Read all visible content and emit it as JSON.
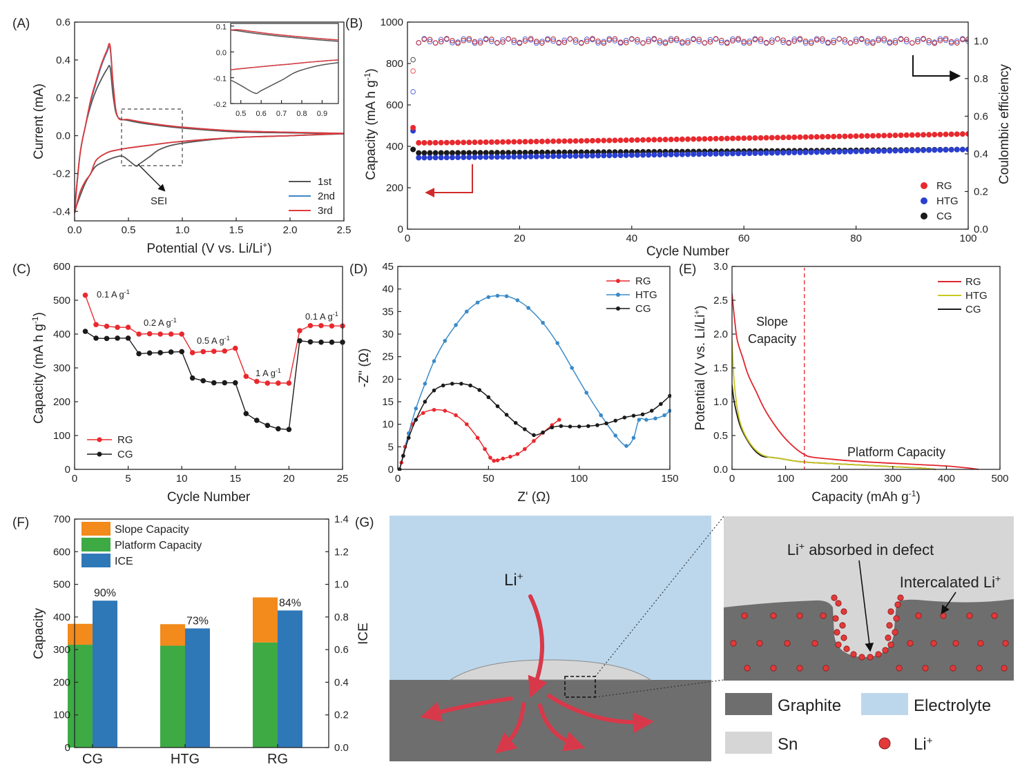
{
  "panels": {
    "A": {
      "letter": "(A)"
    },
    "B": {
      "letter": "(B)"
    },
    "C": {
      "letter": "(C)"
    },
    "D": {
      "letter": "(D)"
    },
    "E": {
      "letter": "(E)"
    },
    "F": {
      "letter": "(F)"
    },
    "G": {
      "letter": "(G)"
    }
  },
  "colors": {
    "RG": "#e8292e",
    "HTG": "#2a3fcf",
    "CG": "#1a1a1a",
    "cv1": "#555555",
    "cv2": "#3c86c4",
    "cv3": "#e03a3a",
    "eisRG": "#e8292e",
    "eisHTG": "#3a8ac8",
    "eisCG": "#1a1a1a",
    "galRG": "#e0252b",
    "galHTG": "#c8c820",
    "galCG": "#1a1a1a",
    "slope": "#f28a1c",
    "platform": "#3daa44",
    "ice": "#2f78b8",
    "graphite": "#6e6e6e",
    "electrolyte": "#bcd7ec",
    "sn": "#d6d6d6",
    "li": "#e23a3a"
  },
  "chart_data": [
    {
      "id": "A",
      "type": "line",
      "xlabel": "Potential (V vs. Li/Li",
      "xlabel_sup": "+",
      "xlabel_end": ")",
      "ylabel": "Current (mA)",
      "xlim": [
        0,
        2.5
      ],
      "ylim": [
        -0.45,
        0.6
      ],
      "xticks": [
        "0.0",
        "0.5",
        "1.0",
        "1.5",
        "2.0",
        "2.5"
      ],
      "yticks": [
        "-0.4",
        "-0.2",
        "0.0",
        "0.2",
        "0.4",
        "0.6"
      ],
      "legend": [
        "1st",
        "2nd",
        "3rd"
      ],
      "annotation": "SEI",
      "series": [
        {
          "name": "1st",
          "x": [
            0.0,
            0.05,
            0.1,
            0.15,
            0.2,
            0.25,
            0.3,
            0.33,
            0.36,
            0.4,
            0.5,
            0.7,
            1.0,
            1.5,
            2.0,
            2.5
          ],
          "y": [
            -0.38,
            -0.1,
            0.05,
            0.16,
            0.24,
            0.3,
            0.35,
            0.36,
            0.2,
            0.1,
            0.08,
            0.06,
            0.04,
            0.02,
            0.015,
            0.01
          ]
        },
        {
          "name": "1st-cath",
          "x": [
            2.5,
            2.0,
            1.5,
            1.0,
            0.8,
            0.7,
            0.6,
            0.57,
            0.5,
            0.45,
            0.4,
            0.3,
            0.2,
            0.15,
            0.1,
            0.05,
            0.0
          ],
          "y": [
            0.01,
            0.0,
            -0.01,
            -0.04,
            -0.07,
            -0.11,
            -0.15,
            -0.16,
            -0.13,
            -0.11,
            -0.11,
            -0.13,
            -0.16,
            -0.2,
            -0.25,
            -0.32,
            -0.4
          ]
        },
        {
          "name": "2nd",
          "x": [
            0.0,
            0.05,
            0.1,
            0.15,
            0.2,
            0.25,
            0.3,
            0.33,
            0.36,
            0.4,
            0.5,
            0.7,
            1.0,
            1.5,
            2.0,
            2.5
          ],
          "y": [
            -0.4,
            -0.1,
            0.05,
            0.18,
            0.28,
            0.37,
            0.44,
            0.46,
            0.25,
            0.1,
            0.085,
            0.065,
            0.045,
            0.025,
            0.018,
            0.012
          ]
        },
        {
          "name": "2nd-cath",
          "x": [
            2.5,
            2.0,
            1.5,
            1.0,
            0.7,
            0.5,
            0.4,
            0.3,
            0.2,
            0.15,
            0.1,
            0.05,
            0.0
          ],
          "y": [
            0.012,
            0.0,
            -0.01,
            -0.03,
            -0.05,
            -0.065,
            -0.075,
            -0.09,
            -0.13,
            -0.2,
            -0.24,
            -0.3,
            -0.41
          ]
        },
        {
          "name": "3rd",
          "x": [
            0.0,
            0.05,
            0.1,
            0.15,
            0.2,
            0.25,
            0.3,
            0.33,
            0.36,
            0.4,
            0.5,
            0.7,
            1.0,
            1.5,
            2.0,
            2.5
          ],
          "y": [
            -0.4,
            -0.1,
            0.05,
            0.19,
            0.29,
            0.38,
            0.45,
            0.475,
            0.26,
            0.1,
            0.085,
            0.065,
            0.045,
            0.025,
            0.018,
            0.012
          ]
        },
        {
          "name": "3rd-cath",
          "x": [
            2.5,
            2.0,
            1.5,
            1.0,
            0.7,
            0.5,
            0.4,
            0.3,
            0.2,
            0.15,
            0.1,
            0.05,
            0.0
          ],
          "y": [
            0.012,
            0.0,
            -0.01,
            -0.03,
            -0.05,
            -0.065,
            -0.075,
            -0.09,
            -0.13,
            -0.2,
            -0.24,
            -0.3,
            -0.41
          ]
        }
      ],
      "inset": {
        "xlim": [
          0.45,
          0.98
        ],
        "ylim": [
          -0.2,
          0.11
        ],
        "xticks": [
          "0.5",
          "0.6",
          "0.7",
          "0.8",
          "0.9"
        ],
        "yticks": [
          "-0.2",
          "-0.1",
          "0.0",
          "0.1"
        ]
      }
    },
    {
      "id": "B",
      "type": "scatter",
      "xlabel": "Cycle Number",
      "ylabel": "Capacity (mA h g",
      "ylabel_sup": "-1",
      "ylabel_end": ")",
      "y2label": "Coulombic efficiency",
      "xlim": [
        0,
        100
      ],
      "ylim": [
        0,
        1000
      ],
      "y2lim": [
        0,
        1.1
      ],
      "xticks": [
        "0",
        "20",
        "40",
        "60",
        "80",
        "100"
      ],
      "yticks": [
        "0",
        "200",
        "400",
        "600",
        "800",
        "1000"
      ],
      "y2ticks": [
        "0.0",
        "0.2",
        "0.4",
        "0.6",
        "0.8",
        "1.0"
      ],
      "legend": [
        "RG",
        "HTG",
        "CG"
      ],
      "capacity_start": {
        "RG": [
          490,
          417
        ],
        "HTG": [
          475,
          345
        ],
        "CG": [
          385,
          368
        ]
      },
      "capacity_end": {
        "RG": 460,
        "HTG": 385,
        "CG": 385
      },
      "ce_first": {
        "RG": 0.84,
        "HTG": 0.73,
        "CG": 0.9
      }
    },
    {
      "id": "C",
      "type": "line",
      "xlabel": "Cycle Number",
      "ylabel": "Capacity (mA h g",
      "ylabel_sup": "-1",
      "ylabel_end": ")",
      "xlim": [
        0,
        25
      ],
      "ylim": [
        0,
        600
      ],
      "xticks": [
        "0",
        "5",
        "10",
        "15",
        "20",
        "25"
      ],
      "yticks": [
        "0",
        "100",
        "200",
        "300",
        "400",
        "500",
        "600"
      ],
      "legend": [
        "RG",
        "CG"
      ],
      "rate_labels": [
        "0.1 A g",
        "0.2 A g",
        "0.5 A g",
        "1 A g",
        "0.1 A g"
      ],
      "rate_sup": "-1",
      "series": [
        {
          "name": "RG",
          "x": [
            1,
            2,
            3,
            4,
            5,
            6,
            7,
            8,
            9,
            10,
            11,
            12,
            13,
            14,
            15,
            16,
            17,
            18,
            19,
            20,
            21,
            22,
            23,
            24,
            25
          ],
          "y": [
            515,
            428,
            423,
            420,
            420,
            400,
            401,
            400,
            400,
            400,
            345,
            348,
            349,
            350,
            358,
            275,
            260,
            255,
            255,
            255,
            410,
            425,
            425,
            424,
            424
          ]
        },
        {
          "name": "CG",
          "x": [
            1,
            2,
            3,
            4,
            5,
            6,
            7,
            8,
            9,
            10,
            11,
            12,
            13,
            14,
            15,
            16,
            17,
            18,
            19,
            20,
            21,
            22,
            23,
            24,
            25
          ],
          "y": [
            408,
            388,
            387,
            388,
            388,
            342,
            344,
            345,
            347,
            348,
            270,
            262,
            256,
            256,
            256,
            165,
            145,
            130,
            120,
            118,
            380,
            377,
            376,
            376,
            376
          ]
        }
      ]
    },
    {
      "id": "D",
      "type": "line",
      "xlabel": "Z' (Ω)",
      "ylabel": "-Z\" (Ω)",
      "xlim": [
        0,
        150
      ],
      "ylim": [
        0,
        45
      ],
      "xticks": [
        "0",
        "50",
        "100",
        "150"
      ],
      "yticks": [
        "0",
        "5",
        "10",
        "15",
        "20",
        "25",
        "30",
        "35",
        "40",
        "45"
      ],
      "legend": [
        "RG",
        "HTG",
        "CG"
      ],
      "series": [
        {
          "name": "RG",
          "x": [
            1,
            2,
            4,
            8,
            14,
            20,
            26,
            32,
            38,
            44,
            48,
            51,
            53,
            55,
            58,
            62,
            66,
            70,
            75,
            80,
            85,
            89
          ],
          "y": [
            0,
            1.5,
            5,
            10,
            12.5,
            13.2,
            13,
            12,
            10,
            7,
            4.5,
            2.6,
            1.9,
            2,
            2.4,
            2.8,
            3.4,
            4.5,
            6.3,
            8.1,
            9.8,
            11
          ]
        },
        {
          "name": "HTG",
          "x": [
            1,
            3,
            6,
            10,
            15,
            20,
            26,
            32,
            38,
            44,
            50,
            55,
            60,
            66,
            72,
            80,
            88,
            96,
            104,
            112,
            120,
            126,
            130,
            133,
            137,
            142,
            147,
            150
          ],
          "y": [
            0,
            3,
            8,
            13.5,
            19,
            24,
            28.5,
            32,
            35,
            37,
            38.2,
            38.5,
            38.4,
            37.5,
            35.8,
            32.5,
            28,
            22.5,
            17,
            12,
            7.5,
            5.2,
            7,
            11,
            11,
            11.3,
            12,
            13
          ]
        },
        {
          "name": "CG",
          "x": [
            1,
            3,
            6,
            10,
            15,
            20,
            25,
            30,
            35,
            40,
            45,
            50,
            55,
            60,
            65,
            70,
            75,
            80,
            85,
            90,
            95,
            100,
            105,
            110,
            115,
            120,
            125,
            130,
            135,
            140,
            145,
            150
          ],
          "y": [
            0,
            3,
            7,
            11,
            15,
            17.5,
            18.6,
            19,
            19,
            18.6,
            17.6,
            16,
            14,
            12.1,
            10.3,
            8.9,
            7.6,
            8.2,
            9.3,
            9.6,
            9.5,
            9.5,
            9.6,
            9.8,
            10.2,
            10.8,
            11.5,
            11.9,
            12.2,
            13,
            14.5,
            16.3
          ]
        }
      ]
    },
    {
      "id": "E",
      "type": "line",
      "xlabel": "Capacity (mAh g",
      "xlabel_sup": "-1",
      "xlabel_end": ")",
      "ylabel": "Potential (V vs. Li/Li",
      "ylabel_sup": "+",
      "ylabel_end": ")",
      "xlim": [
        0,
        500
      ],
      "ylim": [
        0,
        3.0
      ],
      "xticks": [
        "0",
        "100",
        "200",
        "300",
        "400",
        "500"
      ],
      "yticks": [
        "0.0",
        "0.5",
        "1.0",
        "1.5",
        "2.0",
        "2.5",
        "3.0"
      ],
      "legend": [
        "RG",
        "HTG",
        "CG"
      ],
      "slope_label": [
        "Slope",
        "Capacity"
      ],
      "platform_label": "Platform Capacity",
      "divider_x": 135,
      "series": [
        {
          "name": "RG",
          "x": [
            0,
            5,
            10,
            20,
            30,
            45,
            60,
            80,
            100,
            120,
            135,
            150,
            200,
            250,
            300,
            350,
            400,
            440,
            460
          ],
          "y": [
            2.6,
            2.2,
            1.9,
            1.65,
            1.4,
            1.15,
            0.9,
            0.65,
            0.45,
            0.3,
            0.22,
            0.18,
            0.14,
            0.11,
            0.09,
            0.07,
            0.05,
            0.02,
            0.0
          ]
        },
        {
          "name": "HTG",
          "x": [
            0,
            3,
            8,
            15,
            25,
            40,
            55,
            70,
            90,
            120,
            150,
            200,
            250,
            300,
            350,
            380
          ],
          "y": [
            1.9,
            1.4,
            1.0,
            0.7,
            0.5,
            0.32,
            0.22,
            0.18,
            0.16,
            0.12,
            0.1,
            0.08,
            0.06,
            0.04,
            0.02,
            0.0
          ]
        },
        {
          "name": "CG",
          "x": [
            0,
            3,
            8,
            15,
            25,
            40,
            55,
            70,
            90,
            120,
            150,
            200,
            250,
            300,
            350,
            380
          ],
          "y": [
            1.25,
            1.05,
            0.85,
            0.65,
            0.48,
            0.3,
            0.2,
            0.18,
            0.16,
            0.12,
            0.1,
            0.08,
            0.06,
            0.04,
            0.02,
            0.0
          ]
        }
      ]
    },
    {
      "id": "F",
      "type": "bar",
      "ylabel": "Capacity",
      "y2label": "ICE",
      "ylim": [
        0,
        700
      ],
      "y2lim": [
        0,
        1.4
      ],
      "yticks": [
        "0",
        "100",
        "200",
        "300",
        "400",
        "500",
        "600",
        "700"
      ],
      "y2ticks": [
        "0.0",
        "0.2",
        "0.4",
        "0.6",
        "0.8",
        "1.0",
        "1.2",
        "1.4"
      ],
      "categories": [
        "CG",
        "HTG",
        "RG"
      ],
      "legend": [
        "Slope Capacity",
        "Platform Capacity",
        "ICE"
      ],
      "platform": [
        315,
        312,
        322
      ],
      "slope": [
        64,
        66,
        138
      ],
      "ice": [
        0.9,
        0.73,
        0.84
      ],
      "ice_labels": [
        "90%",
        "73%",
        "84%"
      ]
    }
  ],
  "schematic": {
    "li_label": "Li",
    "li_sup": "+",
    "absorbed_label": "Li",
    "absorbed_sup": "+",
    "absorbed_rest": " absorbed in defect",
    "intercalated_label": "Intercalated Li",
    "intercalated_sup": "+",
    "legend": {
      "graphite": "Graphite",
      "electrolyte": "Electrolyte",
      "sn": "Sn",
      "li": "Li",
      "li_sup": "+"
    }
  }
}
